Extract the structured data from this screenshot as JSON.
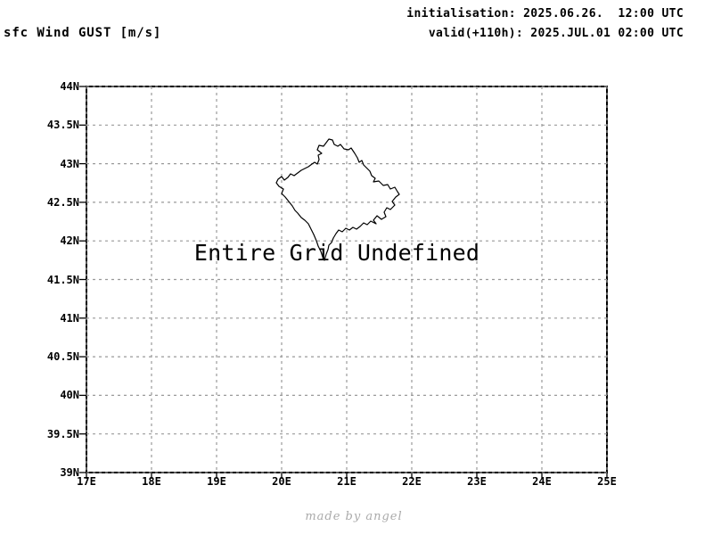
{
  "header": {
    "title": "sfc Wind GUST [m/s]",
    "init_label": "initialisation: 2025.06.26.  12:00 UTC",
    "valid_label": "valid(+110h): 2025.JUL.01 02:00 UTC"
  },
  "chart_data": {
    "type": "map",
    "title": "sfc Wind GUST [m/s]",
    "variable": "sfc Wind GUST",
    "units": "m/s",
    "initialisation": "2025.06.26. 12:00 UTC",
    "forecast_hour": "+110h",
    "valid": "2025.JUL.01 02:00 UTC",
    "annotation": "Entire Grid Undefined",
    "region_outline": "Kosovo border",
    "grid": true,
    "series": [],
    "x_axis": {
      "lim": [
        17,
        25
      ],
      "tick_values": [
        17,
        18,
        19,
        20,
        21,
        22,
        23,
        24,
        25
      ],
      "tick_labels": [
        "17E",
        "18E",
        "19E",
        "20E",
        "21E",
        "22E",
        "23E",
        "24E",
        "25E"
      ]
    },
    "y_axis": {
      "lim": [
        39,
        44
      ],
      "tick_values": [
        39,
        39.5,
        40,
        40.5,
        41,
        41.5,
        42,
        42.5,
        43,
        43.5,
        44
      ],
      "tick_labels": [
        "39N",
        "39.5N",
        "40N",
        "40.5N",
        "41N",
        "41.5N",
        "42N",
        "42.5N",
        "43N",
        "43.5N",
        "44N"
      ]
    }
  },
  "footer": {
    "credit": "made by angel"
  },
  "colors": {
    "background": "#ffffff",
    "frame": "#000000",
    "grid": "#999999",
    "outline": "#000000",
    "text": "#000000",
    "credit": "#aaaaaa"
  }
}
